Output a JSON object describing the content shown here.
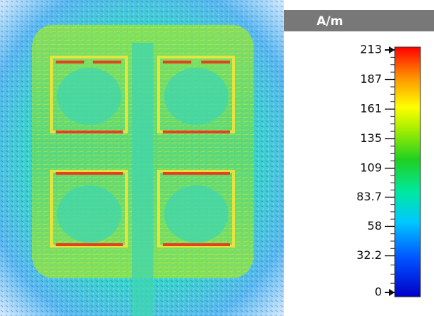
{
  "colorbar": {
    "title": "A/m",
    "ticks": [
      213,
      187,
      161,
      135,
      109,
      83.7,
      58,
      32.2,
      0
    ]
  }
}
